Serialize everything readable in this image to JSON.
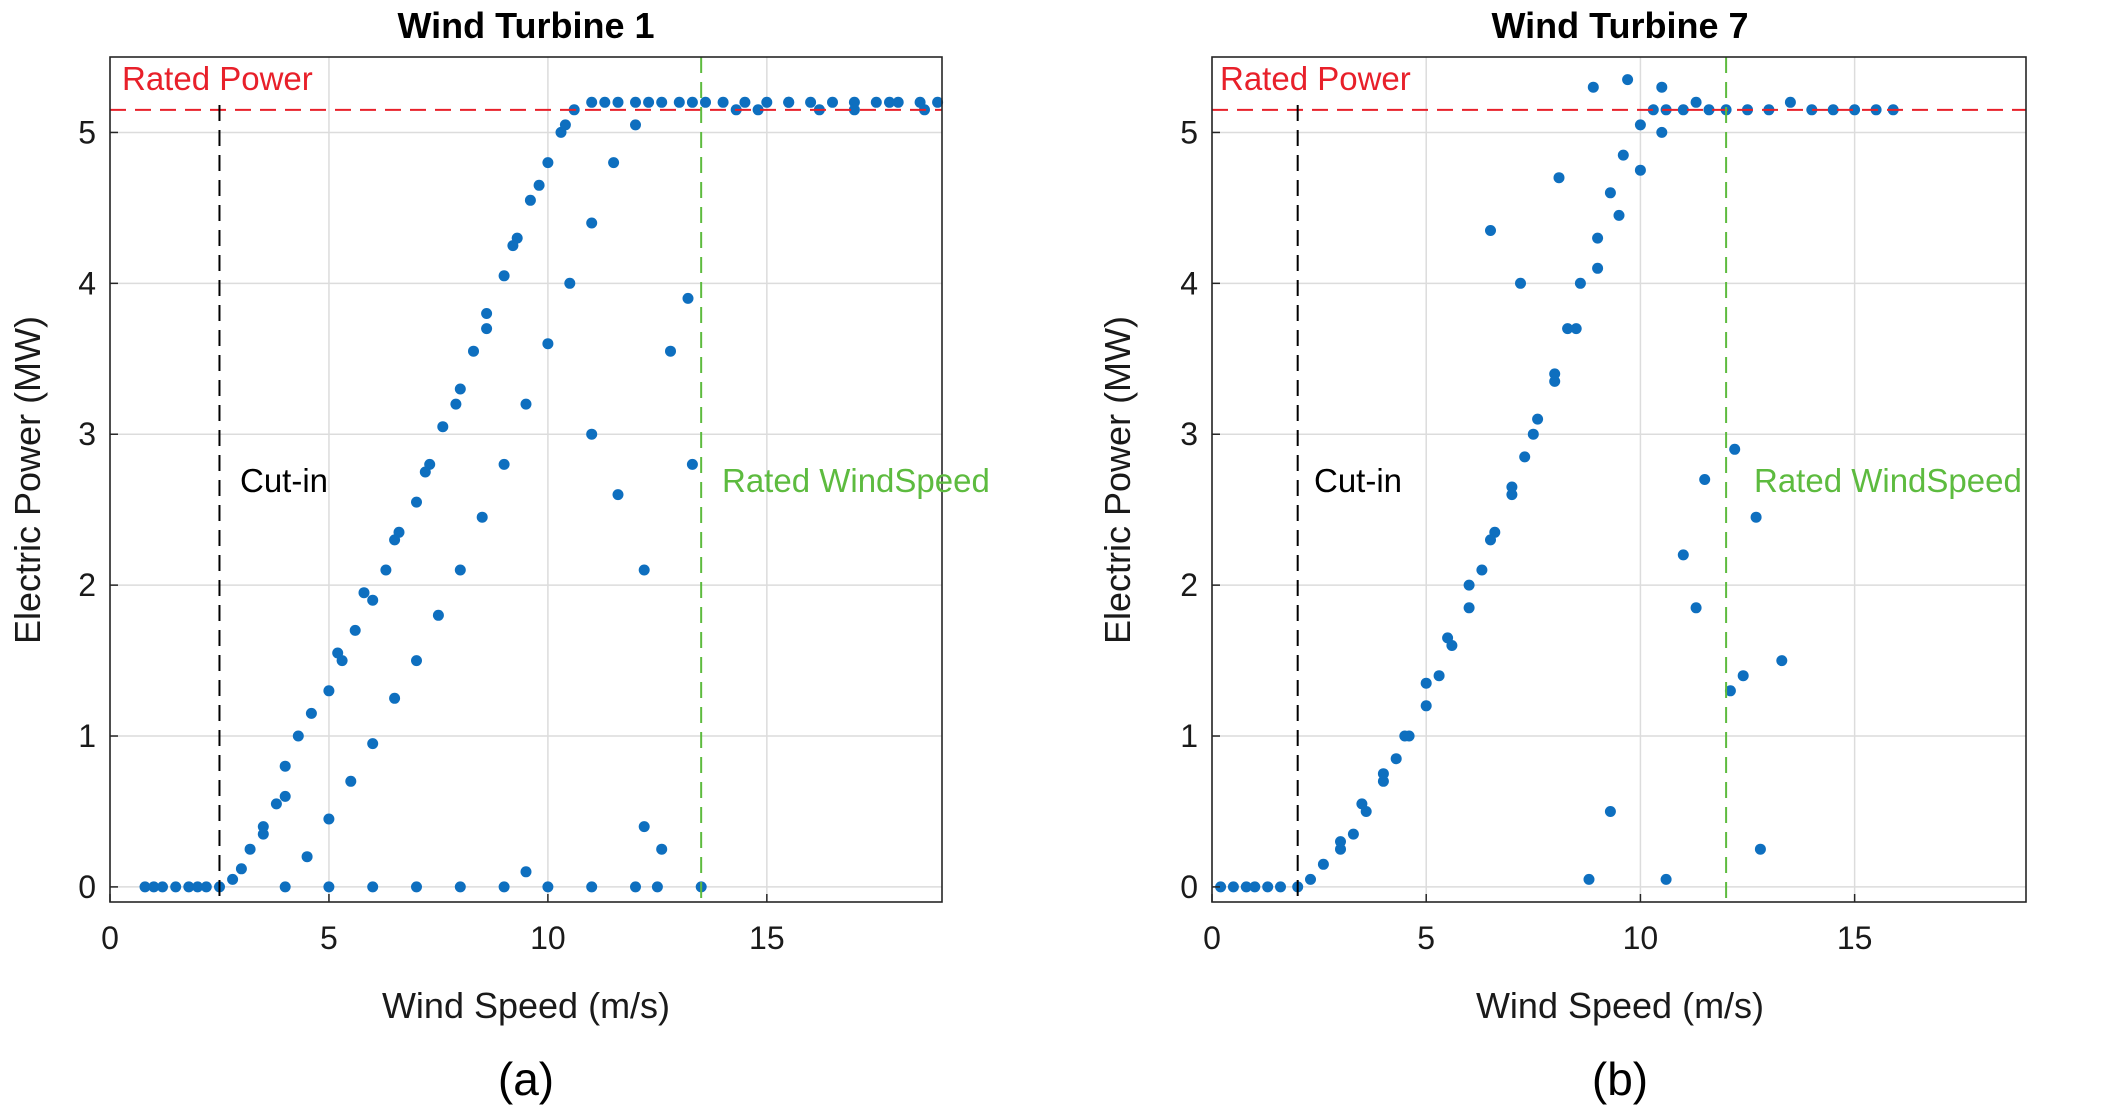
{
  "chart_data": [
    {
      "type": "scatter",
      "title": "Wind Turbine 1",
      "xlabel": "Wind Speed (m/s)",
      "ylabel": "Electric Power (MW)",
      "caption": "(a)",
      "xlim": [
        0,
        19
      ],
      "ylim": [
        -0.1,
        5.5
      ],
      "xticks": [
        0,
        5,
        10,
        15
      ],
      "yticks": [
        0,
        1,
        2,
        3,
        4,
        5
      ],
      "grid": true,
      "marker_color": "#0E6FBF",
      "reference_lines": {
        "rated_power": {
          "label": "Rated Power",
          "value": 5.15,
          "color": "#E8202A"
        },
        "cut_in": {
          "label": "Cut-in",
          "value": 2.5,
          "color": "#000000"
        },
        "rated_wind_speed": {
          "label": "Rated WindSpeed",
          "value": 13.5,
          "color": "#5DBB3F"
        }
      },
      "series": [
        {
          "x": [
            0.8,
            1.0,
            1.2,
            1.5,
            1.8,
            2.0,
            2.2,
            2.5,
            2.8,
            3.0,
            3.2,
            3.5,
            3.8,
            4.0,
            4.3,
            4.6,
            5.0,
            5.3,
            5.6,
            6.0,
            6.3,
            6.6,
            7.0,
            7.3,
            7.6,
            8.0,
            8.3,
            8.6,
            9.0,
            9.3,
            9.6,
            10.0,
            10.3,
            10.6,
            11.0,
            11.3,
            11.6,
            12.0,
            12.3,
            12.6,
            13.0,
            13.3,
            13.6,
            14.0,
            14.5,
            15.0,
            15.5,
            16.0,
            16.5,
            17.0,
            17.5,
            18.0,
            18.5,
            18.9,
            4.0,
            5.0,
            6.0,
            7.0,
            8.0,
            9.0,
            10.0,
            11.0,
            12.0,
            12.5,
            13.5,
            4.5,
            5.0,
            5.5,
            6.0,
            6.5,
            7.0,
            7.5,
            8.0,
            8.5,
            9.0,
            9.5,
            10.0,
            10.5,
            11.0,
            11.5,
            12.0,
            3.5,
            4.0,
            5.2,
            5.8,
            6.5,
            7.2,
            7.9,
            8.6,
            9.2,
            9.8,
            10.4,
            11.0,
            11.6,
            12.2,
            12.8,
            13.2,
            14.3,
            14.8,
            15.5,
            16.2,
            17.0,
            17.8,
            18.6,
            12.2,
            12.6,
            9.5,
            13.3
          ],
          "y": [
            0.0,
            0.0,
            0.0,
            0.0,
            0.0,
            0.0,
            0.0,
            0.0,
            0.05,
            0.12,
            0.25,
            0.4,
            0.55,
            0.8,
            1.0,
            1.15,
            1.3,
            1.5,
            1.7,
            1.9,
            2.1,
            2.35,
            2.55,
            2.8,
            3.05,
            3.3,
            3.55,
            3.8,
            4.05,
            4.3,
            4.55,
            4.8,
            5.0,
            5.15,
            5.2,
            5.2,
            5.2,
            5.2,
            5.2,
            5.2,
            5.2,
            5.2,
            5.2,
            5.2,
            5.2,
            5.2,
            5.2,
            5.2,
            5.2,
            5.2,
            5.2,
            5.2,
            5.2,
            5.2,
            0.0,
            0.0,
            0.0,
            0.0,
            0.0,
            0.0,
            0.0,
            0.0,
            0.0,
            0.0,
            0.0,
            0.2,
            0.45,
            0.7,
            0.95,
            1.25,
            1.5,
            1.8,
            2.1,
            2.45,
            2.8,
            3.2,
            3.6,
            4.0,
            4.4,
            4.8,
            5.05,
            0.35,
            0.6,
            1.55,
            1.95,
            2.3,
            2.75,
            3.2,
            3.7,
            4.25,
            4.65,
            5.05,
            3.0,
            2.6,
            2.1,
            3.55,
            3.9,
            5.15,
            5.15,
            5.2,
            5.15,
            5.15,
            5.2,
            5.15,
            0.4,
            0.25,
            0.1,
            2.8
          ]
        }
      ]
    },
    {
      "type": "scatter",
      "title": "Wind Turbine 7",
      "xlabel": "Wind Speed (m/s)",
      "ylabel": "Electric Power (MW)",
      "caption": "(b)",
      "xlim": [
        0,
        19
      ],
      "ylim": [
        -0.1,
        5.5
      ],
      "xticks": [
        0,
        5,
        10,
        15
      ],
      "yticks": [
        0,
        1,
        2,
        3,
        4,
        5
      ],
      "grid": true,
      "marker_color": "#0E6FBF",
      "reference_lines": {
        "rated_power": {
          "label": "Rated Power",
          "value": 5.15,
          "color": "#E8202A"
        },
        "cut_in": {
          "label": "Cut-in",
          "value": 2.0,
          "color": "#000000"
        },
        "rated_wind_speed": {
          "label": "Rated WindSpeed",
          "value": 12.0,
          "color": "#5DBB3F"
        }
      },
      "series": [
        {
          "x": [
            0.2,
            0.5,
            0.8,
            1.0,
            1.3,
            1.6,
            2.0,
            2.3,
            2.6,
            3.0,
            3.3,
            3.6,
            4.0,
            4.3,
            4.6,
            5.0,
            5.3,
            5.6,
            6.0,
            6.3,
            6.6,
            7.0,
            7.3,
            7.6,
            8.0,
            8.3,
            8.6,
            9.0,
            9.3,
            9.6,
            10.0,
            10.3,
            10.6,
            11.0,
            11.3,
            11.6,
            12.0,
            12.5,
            13.0,
            13.5,
            14.0,
            14.5,
            15.0,
            15.5,
            15.9,
            3.0,
            3.5,
            4.0,
            4.5,
            5.0,
            5.5,
            6.0,
            6.5,
            7.0,
            7.5,
            8.0,
            8.5,
            9.0,
            9.5,
            10.0,
            10.5,
            11.0,
            11.5,
            12.2,
            12.4,
            12.7,
            13.3,
            12.8,
            9.3,
            10.6,
            8.8,
            11.3,
            12.1,
            6.5,
            7.2,
            8.1,
            8.9,
            9.7,
            10.5
          ],
          "y": [
            0.0,
            0.0,
            0.0,
            0.0,
            0.0,
            0.0,
            0.0,
            0.05,
            0.15,
            0.25,
            0.35,
            0.5,
            0.7,
            0.85,
            1.0,
            1.2,
            1.4,
            1.6,
            1.85,
            2.1,
            2.35,
            2.6,
            2.85,
            3.1,
            3.4,
            3.7,
            4.0,
            4.3,
            4.6,
            4.85,
            5.05,
            5.15,
            5.15,
            5.15,
            5.2,
            5.15,
            5.15,
            5.15,
            5.15,
            5.2,
            5.15,
            5.15,
            5.15,
            5.15,
            5.15,
            0.3,
            0.55,
            0.75,
            1.0,
            1.35,
            1.65,
            2.0,
            2.3,
            2.65,
            3.0,
            3.35,
            3.7,
            4.1,
            4.45,
            4.75,
            5.0,
            2.2,
            2.7,
            2.9,
            1.4,
            2.45,
            1.5,
            0.25,
            0.5,
            0.05,
            0.05,
            1.85,
            1.3,
            4.35,
            4.0,
            4.7,
            5.3,
            5.35,
            5.3
          ]
        }
      ]
    }
  ]
}
